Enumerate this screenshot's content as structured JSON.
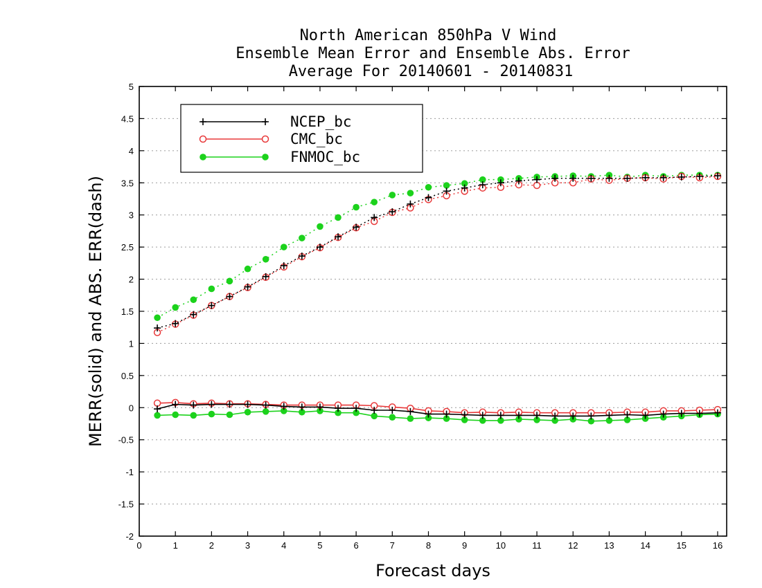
{
  "chart_data": {
    "type": "line",
    "title": [
      "North American 850hPa V Wind",
      "Ensemble Mean Error and Ensemble Abs. Error",
      "Average For 20140601 - 20140831"
    ],
    "xlabel": "Forecast days",
    "ylabel": "MERR(solid) and ABS. ERR(dash)",
    "xlim": [
      0,
      16.25
    ],
    "ylim": [
      -2,
      5
    ],
    "xticks": [
      0,
      1,
      2,
      3,
      4,
      5,
      6,
      7,
      8,
      9,
      10,
      11,
      12,
      13,
      14,
      15,
      16
    ],
    "yticks": [
      -2,
      -1.5,
      -1,
      -0.5,
      0,
      0.5,
      1,
      1.5,
      2,
      2.5,
      3,
      3.5,
      4,
      4.5,
      5
    ],
    "ytick_labels": [
      "-2",
      "-1.5",
      "-1",
      "-0.5",
      "0",
      "0.5",
      "1",
      "1.5",
      "2",
      "2.5",
      "3",
      "3.5",
      "4",
      "4.5",
      "5"
    ],
    "grid": "horizontal dotted",
    "legend_position": "top-left",
    "x": [
      0.5,
      1,
      1.5,
      2,
      2.5,
      3,
      3.5,
      4,
      4.5,
      5,
      5.5,
      6,
      6.5,
      7,
      7.5,
      8,
      8.5,
      9,
      9.5,
      10,
      10.5,
      11,
      11.5,
      12,
      12.5,
      13,
      13.5,
      14,
      14.5,
      15,
      15.5,
      16
    ],
    "series": [
      {
        "name": "NCEP_bc",
        "color": "#000000",
        "marker": "plus",
        "merr": [
          -0.02,
          0.05,
          0.04,
          0.05,
          0.05,
          0.05,
          0.04,
          0.02,
          0.01,
          0.01,
          -0.01,
          -0.01,
          -0.04,
          -0.04,
          -0.06,
          -0.1,
          -0.1,
          -0.11,
          -0.12,
          -0.12,
          -0.12,
          -0.12,
          -0.13,
          -0.13,
          -0.13,
          -0.12,
          -0.11,
          -0.12,
          -0.1,
          -0.09,
          -0.09,
          -0.08
        ],
        "abs_err": [
          1.24,
          1.31,
          1.45,
          1.59,
          1.73,
          1.88,
          2.04,
          2.21,
          2.36,
          2.5,
          2.66,
          2.81,
          2.96,
          3.05,
          3.17,
          3.27,
          3.37,
          3.42,
          3.47,
          3.5,
          3.53,
          3.55,
          3.57,
          3.57,
          3.57,
          3.57,
          3.57,
          3.58,
          3.58,
          3.59,
          3.6,
          3.61
        ]
      },
      {
        "name": "CMC_bc",
        "color": "#e8393a",
        "marker": "open-circle",
        "merr": [
          0.07,
          0.08,
          0.06,
          0.07,
          0.06,
          0.06,
          0.05,
          0.04,
          0.04,
          0.04,
          0.04,
          0.04,
          0.03,
          0.01,
          -0.01,
          -0.05,
          -0.06,
          -0.08,
          -0.07,
          -0.08,
          -0.07,
          -0.08,
          -0.08,
          -0.08,
          -0.08,
          -0.08,
          -0.07,
          -0.07,
          -0.05,
          -0.05,
          -0.04,
          -0.03
        ],
        "abs_err": [
          1.17,
          1.3,
          1.44,
          1.59,
          1.73,
          1.87,
          2.03,
          2.19,
          2.35,
          2.49,
          2.65,
          2.8,
          2.9,
          3.04,
          3.11,
          3.24,
          3.3,
          3.37,
          3.42,
          3.43,
          3.47,
          3.46,
          3.5,
          3.5,
          3.56,
          3.54,
          3.57,
          3.58,
          3.56,
          3.6,
          3.58,
          3.6
        ]
      },
      {
        "name": "FNMOC_bc",
        "color": "#1cd21c",
        "marker": "filled-circle",
        "merr": [
          -0.12,
          -0.11,
          -0.12,
          -0.1,
          -0.11,
          -0.07,
          -0.06,
          -0.05,
          -0.07,
          -0.05,
          -0.08,
          -0.08,
          -0.13,
          -0.15,
          -0.17,
          -0.16,
          -0.17,
          -0.19,
          -0.2,
          -0.2,
          -0.18,
          -0.19,
          -0.2,
          -0.18,
          -0.21,
          -0.2,
          -0.19,
          -0.17,
          -0.15,
          -0.13,
          -0.11,
          -0.1
        ],
        "abs_err": [
          1.4,
          1.56,
          1.68,
          1.85,
          1.97,
          2.16,
          2.31,
          2.5,
          2.64,
          2.82,
          2.96,
          3.12,
          3.2,
          3.31,
          3.34,
          3.43,
          3.46,
          3.49,
          3.55,
          3.55,
          3.57,
          3.59,
          3.6,
          3.61,
          3.6,
          3.62,
          3.59,
          3.62,
          3.6,
          3.62,
          3.62,
          3.62
        ]
      }
    ]
  }
}
